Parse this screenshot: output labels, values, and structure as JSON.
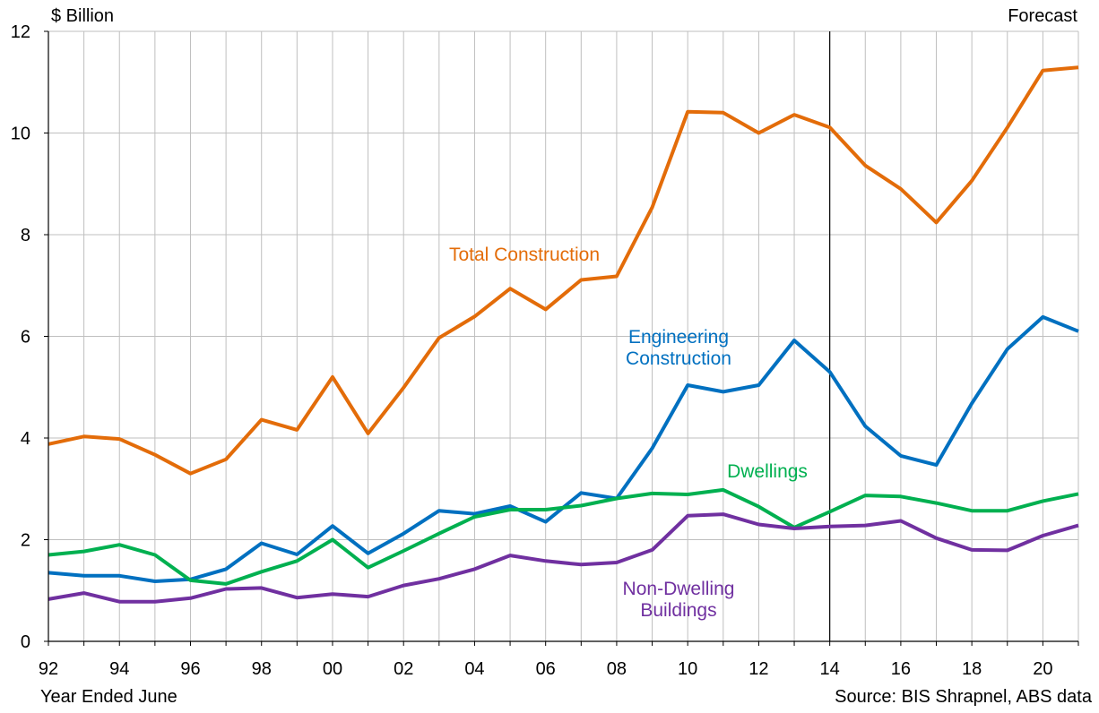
{
  "chart_data": {
    "type": "line",
    "unit_label": "$ Billion",
    "xlabel": "Year Ended June",
    "source": "Source: BIS Shrapnel, ABS data",
    "forecast_label": "Forecast",
    "forecast_from_year": 2014,
    "x": [
      1992,
      1993,
      1994,
      1995,
      1996,
      1997,
      1998,
      1999,
      2000,
      2001,
      2002,
      2003,
      2004,
      2005,
      2006,
      2007,
      2008,
      2009,
      2010,
      2011,
      2012,
      2013,
      2014,
      2015,
      2016,
      2017,
      2018,
      2019,
      2020,
      2021
    ],
    "xticks": [
      1992,
      1994,
      1996,
      1998,
      2000,
      2002,
      2004,
      2006,
      2008,
      2010,
      2012,
      2014,
      2016,
      2018,
      2020
    ],
    "xticklabels": [
      "92",
      "94",
      "96",
      "98",
      "00",
      "02",
      "04",
      "06",
      "08",
      "10",
      "12",
      "14",
      "16",
      "18",
      "20"
    ],
    "xlim": [
      1992,
      2021
    ],
    "ylim": [
      0,
      12
    ],
    "yticks": [
      0,
      2,
      4,
      6,
      8,
      10,
      12
    ],
    "yticklabels": [
      "0",
      "2",
      "4",
      "6",
      "8",
      "10",
      "12"
    ],
    "grid": true,
    "series": [
      {
        "name": "Total Construction",
        "label_lines": [
          "Total Construction"
        ],
        "color": "#e36c09",
        "values": [
          3.88,
          4.03,
          3.98,
          3.67,
          3.3,
          3.58,
          4.36,
          4.16,
          5.2,
          4.09,
          4.99,
          5.97,
          6.39,
          6.94,
          6.53,
          7.11,
          7.18,
          8.54,
          10.42,
          10.4,
          10.0,
          10.36,
          10.11,
          9.36,
          8.9,
          8.24,
          9.06,
          10.11,
          11.23,
          11.29
        ]
      },
      {
        "name": "Engineering Construction",
        "label_lines": [
          "Engineering",
          "Construction"
        ],
        "color": "#0070c0",
        "values": [
          1.35,
          1.29,
          1.29,
          1.18,
          1.22,
          1.42,
          1.93,
          1.71,
          2.27,
          1.73,
          2.12,
          2.57,
          2.51,
          2.66,
          2.35,
          2.92,
          2.81,
          3.8,
          5.04,
          4.91,
          5.04,
          5.92,
          5.3,
          4.23,
          3.65,
          3.47,
          4.68,
          5.75,
          6.38,
          6.1
        ]
      },
      {
        "name": "Dwellings",
        "label_lines": [
          "Dwellings"
        ],
        "color": "#00b050",
        "values": [
          1.7,
          1.77,
          1.9,
          1.7,
          1.2,
          1.13,
          1.37,
          1.58,
          2.0,
          1.45,
          1.78,
          2.12,
          2.45,
          2.59,
          2.59,
          2.67,
          2.81,
          2.91,
          2.89,
          2.98,
          2.65,
          2.24,
          2.55,
          2.87,
          2.85,
          2.72,
          2.57,
          2.57,
          2.76,
          2.9
        ]
      },
      {
        "name": "Non-Dwelling Buildings",
        "label_lines": [
          "Non-Dwelling",
          "Buildings"
        ],
        "color": "#7030a0",
        "values": [
          0.83,
          0.95,
          0.78,
          0.78,
          0.85,
          1.03,
          1.05,
          0.86,
          0.93,
          0.88,
          1.1,
          1.23,
          1.42,
          1.69,
          1.58,
          1.51,
          1.55,
          1.8,
          2.47,
          2.5,
          2.3,
          2.22,
          2.26,
          2.28,
          2.37,
          2.03,
          1.8,
          1.79,
          2.08,
          2.28
        ]
      }
    ]
  }
}
